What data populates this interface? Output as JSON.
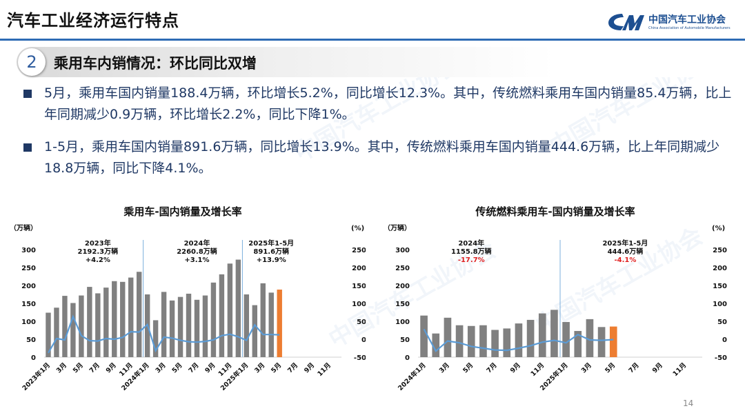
{
  "header": {
    "title": "汽车工业经济运行特点",
    "logo_cn": "中国汽车工业协会",
    "logo_en": "China Association of Automobile Manufacturers",
    "logo_color": "#1d4f91",
    "accent": "#2e6bb5"
  },
  "section": {
    "number": "2",
    "title": "乘用车内销情况：环比同比双增"
  },
  "bullets": [
    "5月，乘用车国内销量188.4万辆，环比增长5.2%，同比增长12.3%。其中，传统燃料乘用车国内销量85.4万辆，比上年同期减少0.9万辆，环比增长2.2%，同比下降1%。",
    "1-5月，乘用车国内销量891.6万辆，同比增长13.9%。其中，传统燃料乘用车国内销量444.6万辆，比上年同期减少18.8万辆，同比下降4.1%。"
  ],
  "watermark": "中国汽车工业协会",
  "page_number": "14",
  "chart_data": [
    {
      "type": "bar",
      "title": "乘用车-国内销量及增长率",
      "ylabel_left": "（万辆）",
      "ylabel_right": "(%)",
      "ylim_left": [
        0,
        300
      ],
      "yticks_left": [
        "0",
        "50",
        "100",
        "150",
        "200",
        "250",
        "300"
      ],
      "ylim_right": [
        -50,
        250
      ],
      "yticks_right": [
        "-50",
        "0",
        "50",
        "100",
        "150",
        "200",
        "250"
      ],
      "x_tick_labels": [
        "2023年1月",
        "3月",
        "5月",
        "7月",
        "9月",
        "11月",
        "2024年1月",
        "3月",
        "5月",
        "7月",
        "9月",
        "11月",
        "2025年1月",
        "3月",
        "5月",
        "7月",
        "9月",
        "11月"
      ],
      "months_total": 36,
      "values": [
        124,
        138,
        171,
        151,
        172,
        196,
        178,
        194,
        212,
        210,
        222,
        238,
        175,
        103,
        182,
        158,
        168,
        177,
        160,
        172,
        208,
        231,
        261,
        272,
        175,
        145,
        206,
        180,
        188.4
      ],
      "growth_rate": [
        -38,
        2,
        -2,
        63,
        10,
        -4,
        -5,
        2,
        0,
        5,
        21,
        20,
        41,
        -32,
        6,
        3,
        -3,
        -7,
        -8,
        -6,
        -2,
        10,
        14,
        7,
        -3,
        40,
        13,
        13,
        12.3
      ],
      "highlight_index": 28,
      "bar_color": "#808080",
      "highlight_color": "#ed7d31",
      "line_color": "#5b9bd5",
      "dividers_after_month": [
        12,
        24
      ],
      "annotations": [
        {
          "year": "2023年",
          "value": "2192.3万辆",
          "rate": "+4.2%",
          "rate_color": "#111111",
          "month_center": 6.5
        },
        {
          "year": "2024年",
          "value": "2260.8万辆",
          "rate": "+3.1%",
          "rate_color": "#111111",
          "month_center": 18.5
        },
        {
          "year": "2025年1-5月",
          "value": "891.6万辆",
          "rate": "+13.9%",
          "rate_color": "#111111",
          "month_center": 27.5
        }
      ]
    },
    {
      "type": "bar",
      "title": "传统燃料乘用车-国内销量及增长率",
      "ylabel_left": "（万辆）",
      "ylabel_right": "(%)",
      "ylim_left": [
        0,
        300
      ],
      "yticks_left": [
        "0",
        "50",
        "100",
        "150",
        "200",
        "250",
        "300"
      ],
      "ylim_right": [
        -50,
        250
      ],
      "yticks_right": [
        "-50",
        "0",
        "50",
        "100",
        "150",
        "200",
        "250"
      ],
      "x_tick_labels": [
        "2024年1月",
        "3月",
        "5月",
        "7月",
        "9月",
        "11月",
        "2025年1月",
        "3月",
        "5月",
        "7月",
        "9月",
        "11月"
      ],
      "months_total": 24,
      "values": [
        116,
        66,
        110,
        89,
        87,
        89,
        76,
        80,
        94,
        104,
        122,
        132,
        98,
        73,
        106,
        84,
        85.4
      ],
      "growth_rate": [
        28,
        -33,
        -5,
        -10,
        -20,
        -25,
        -30,
        -31,
        -25,
        -18,
        -8,
        -3,
        -10,
        13,
        -2,
        -3,
        -1
      ],
      "highlight_index": 16,
      "bar_color": "#808080",
      "highlight_color": "#ed7d31",
      "line_color": "#5b9bd5",
      "dividers_after_month": [
        12
      ],
      "annotations": [
        {
          "year": "2024年",
          "value": "1155.8万辆",
          "rate": "-17.7%",
          "rate_color": "#e02020",
          "month_center": 4.5
        },
        {
          "year": "2025年1-5月",
          "value": "444.6万辆",
          "rate": "-4.1%",
          "rate_color": "#e02020",
          "month_center": 17.5
        }
      ]
    }
  ]
}
